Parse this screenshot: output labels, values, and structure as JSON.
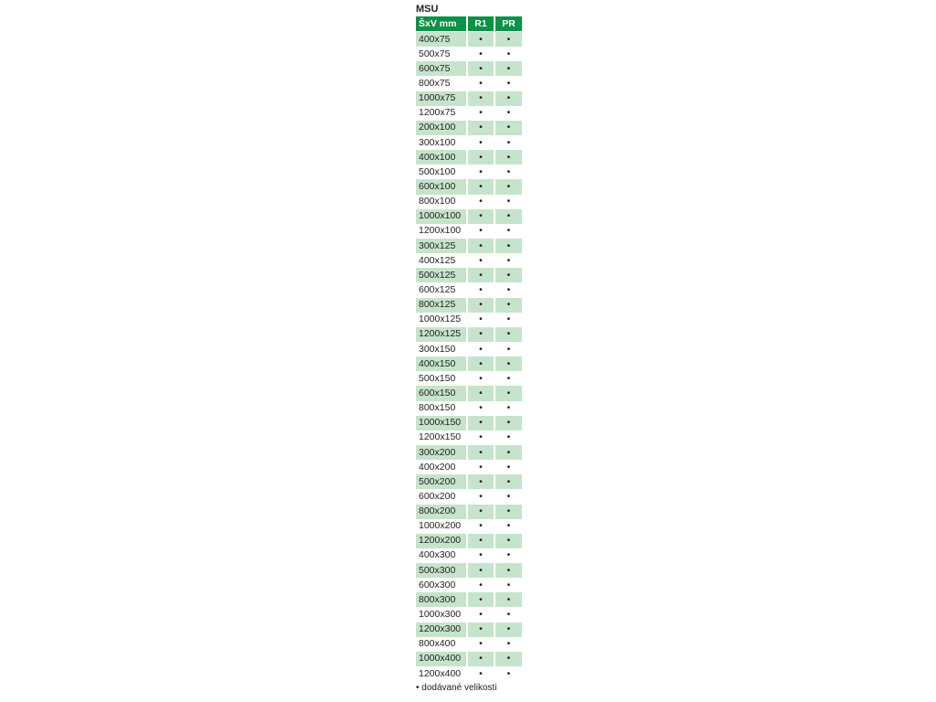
{
  "title": "MSU",
  "columns": [
    "ŠxV mm",
    "R1",
    "PR"
  ],
  "rows": [
    [
      "400x75",
      "•",
      "•"
    ],
    [
      "500x75",
      "•",
      "•"
    ],
    [
      "600x75",
      "•",
      "•"
    ],
    [
      "800x75",
      "•",
      "•"
    ],
    [
      "1000x75",
      "•",
      "•"
    ],
    [
      "1200x75",
      "•",
      "•"
    ],
    [
      "200x100",
      "•",
      "•"
    ],
    [
      "300x100",
      "•",
      "•"
    ],
    [
      "400x100",
      "•",
      "•"
    ],
    [
      "500x100",
      "•",
      "•"
    ],
    [
      "600x100",
      "•",
      "•"
    ],
    [
      "800x100",
      "•",
      "•"
    ],
    [
      "1000x100",
      "•",
      "•"
    ],
    [
      "1200x100",
      "•",
      "•"
    ],
    [
      "300x125",
      "•",
      "•"
    ],
    [
      "400x125",
      "•",
      "•"
    ],
    [
      "500x125",
      "•",
      "•"
    ],
    [
      "600x125",
      "•",
      "•"
    ],
    [
      "800x125",
      "•",
      "•"
    ],
    [
      "1000x125",
      "•",
      "•"
    ],
    [
      "1200x125",
      "•",
      "•"
    ],
    [
      "300x150",
      "•",
      "•"
    ],
    [
      "400x150",
      "•",
      "•"
    ],
    [
      "500x150",
      "•",
      "•"
    ],
    [
      "600x150",
      "•",
      "•"
    ],
    [
      "800x150",
      "•",
      "•"
    ],
    [
      "1000x150",
      "•",
      "•"
    ],
    [
      "1200x150",
      "•",
      "•"
    ],
    [
      "300x200",
      "•",
      "•"
    ],
    [
      "400x200",
      "•",
      "•"
    ],
    [
      "500x200",
      "•",
      "•"
    ],
    [
      "600x200",
      "•",
      "•"
    ],
    [
      "800x200",
      "•",
      "•"
    ],
    [
      "1000x200",
      "•",
      "•"
    ],
    [
      "1200x200",
      "•",
      "•"
    ],
    [
      "400x300",
      "•",
      "•"
    ],
    [
      "500x300",
      "•",
      "•"
    ],
    [
      "600x300",
      "•",
      "•"
    ],
    [
      "800x300",
      "•",
      "•"
    ],
    [
      "1000x300",
      "•",
      "•"
    ],
    [
      "1200x300",
      "•",
      "•"
    ],
    [
      "800x400",
      "•",
      "•"
    ],
    [
      "1000x400",
      "•",
      "•"
    ],
    [
      "1200x400",
      "•",
      "•"
    ]
  ],
  "note": "• dodávané velikosti",
  "colors": {
    "header": "#0a9246",
    "row_shade": "#c6e4cb"
  }
}
